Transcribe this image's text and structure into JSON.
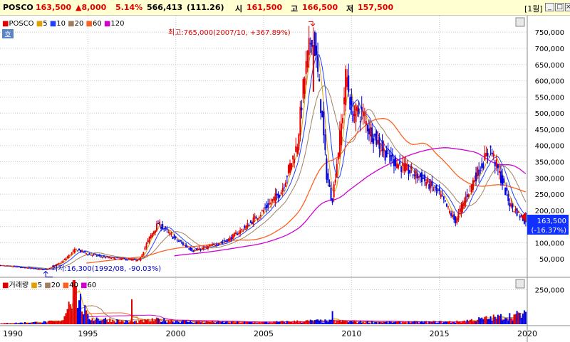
{
  "header": {
    "name": "POSCO",
    "price": "163,500",
    "change": "▲8,000",
    "change_pct": "5.14%",
    "volume": "566,413",
    "volume_ratio": "(111.26)",
    "open_label": "시",
    "open": "161,500",
    "high_label": "고",
    "high": "166,500",
    "low_label": "저",
    "low": "157,500",
    "period": "[1월]",
    "colors": {
      "up": "#e00000",
      "down": "#0000e0",
      "text": "#000000"
    }
  },
  "window_buttons": {
    "minimize": "_",
    "restore": "□",
    "close": "×"
  },
  "price_panel": {
    "legend_dot": "■",
    "legend": [
      {
        "label": "POSCO",
        "color": "#e00000"
      },
      {
        "label": "5",
        "color": "#e0a000"
      },
      {
        "label": "10",
        "color": "#2040ff"
      },
      {
        "label": "20",
        "color": "#a08060"
      },
      {
        "label": "60",
        "color": "#ff6020"
      },
      {
        "label": "120",
        "color": "#d000d0"
      }
    ],
    "tag": "호",
    "max_annotation": "최고:765,000(2007/10, +367.89%)",
    "min_annotation": "최저:16,300(1992/08, -90.03%)",
    "current_price_label": "163,500",
    "current_pct_label": "(-16.37%)"
  },
  "volume_panel": {
    "legend_dot": "■",
    "legend": [
      {
        "label": "거래량",
        "color": "#e00000"
      },
      {
        "label": "5",
        "color": "#e0a000"
      },
      {
        "label": "20",
        "color": "#a08060"
      },
      {
        "label": "40",
        "color": "#ff6020"
      },
      {
        "label": "60",
        "color": "#d000d0"
      }
    ]
  },
  "chart_data": [
    {
      "type": "candlestick",
      "series": [
        {
          "name": "POSCO",
          "x": [
            1990,
            1991,
            1992.6,
            1993.5,
            1994.3,
            1995,
            1996,
            1997,
            1997.9,
            1998.5,
            1999,
            2000,
            2001,
            2002,
            2003,
            2004,
            2005,
            2006,
            2006.9,
            2007.3,
            2007.8,
            2008.3,
            2008.6,
            2008.9,
            2009.5,
            2009.7,
            2010,
            2010.6,
            2011,
            2012,
            2013,
            2014,
            2015,
            2015.9,
            2016.5,
            2017,
            2017.9,
            2018.3,
            2019,
            2019.9
          ],
          "y": [
            30000,
            25000,
            16300,
            40000,
            80000,
            65000,
            55000,
            50000,
            45000,
            115000,
            160000,
            110000,
            75000,
            90000,
            110000,
            150000,
            200000,
            260000,
            400000,
            600000,
            765000,
            500000,
            300000,
            230000,
            500000,
            630000,
            500000,
            500000,
            450000,
            370000,
            330000,
            300000,
            250000,
            165000,
            240000,
            300000,
            390000,
            330000,
            220000,
            163500
          ]
        }
      ],
      "ma_periods": [
        5,
        10,
        20,
        60,
        120
      ],
      "xlim": [
        1990,
        2020
      ],
      "ylim": [
        0,
        790000
      ],
      "x_ticks": [
        "1990",
        "1995",
        "2000",
        "2005",
        "2010",
        "2015",
        "2020"
      ],
      "y_ticks": [
        "50,000",
        "100,000",
        "150,000",
        "200,000",
        "250,000",
        "300,000",
        "350,000",
        "400,000",
        "450,000",
        "500,000",
        "550,000",
        "600,000",
        "650,000",
        "700,000",
        "750,000"
      ],
      "highest": {
        "x": 2007.8,
        "y": 765000
      },
      "lowest": {
        "x": 1992.6,
        "y": 16300
      },
      "current": {
        "x": 2019.9,
        "y": 163500
      }
    },
    {
      "type": "bar",
      "series": [
        {
          "name": "거래량",
          "x": [
            1990,
            1993.5,
            1994.2,
            1995,
            1997.5,
            1999,
            2001,
            2005,
            2008,
            2012,
            2016,
            2019.9
          ],
          "y": [
            6000,
            25000,
            320000,
            60000,
            20000,
            40000,
            22000,
            16000,
            30000,
            17000,
            22000,
            90000
          ]
        }
      ],
      "ylim": [
        0,
        330000
      ],
      "y_ticks": [
        "250,000"
      ]
    }
  ]
}
